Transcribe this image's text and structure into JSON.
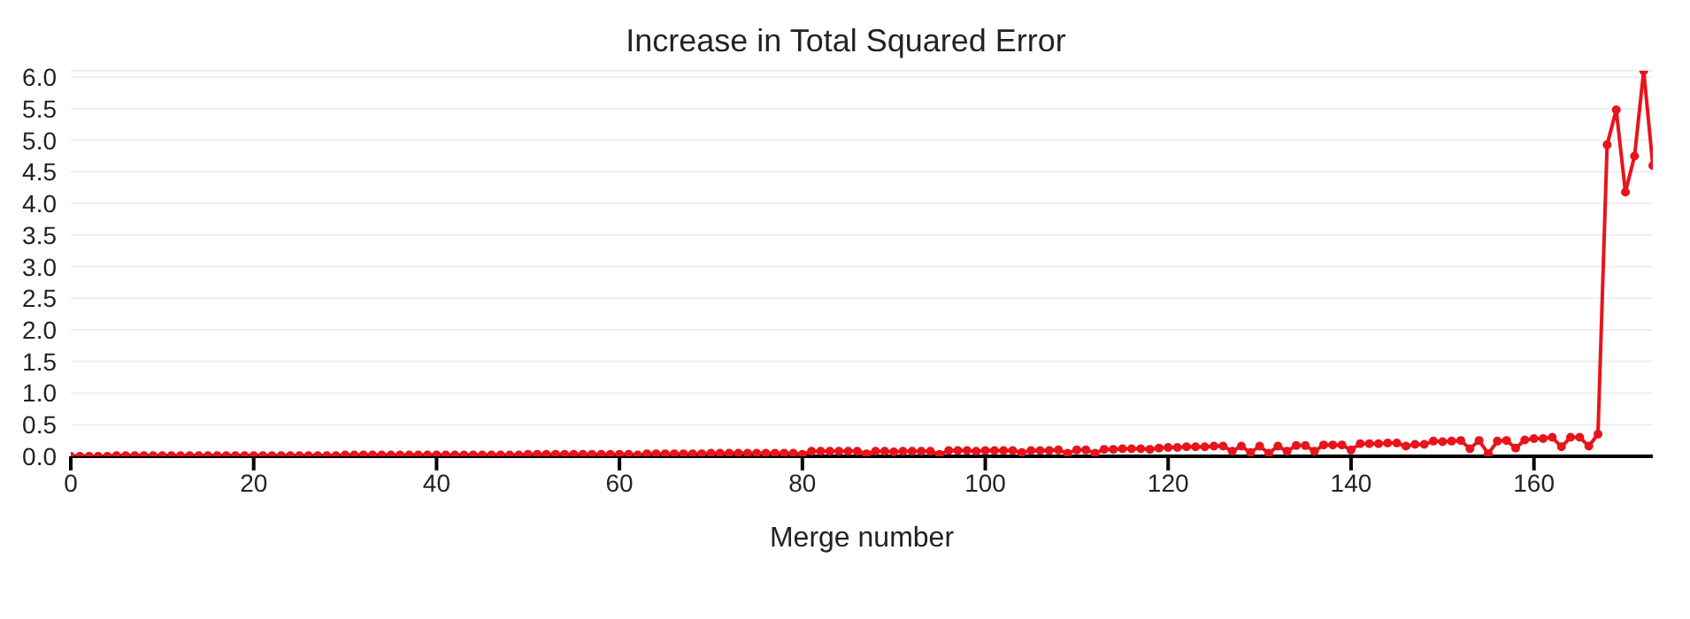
{
  "chart_data": {
    "type": "line",
    "title": "Increase in Total Squared Error",
    "xlabel": "Merge number",
    "x": [
      0,
      1,
      2,
      3,
      4,
      5,
      6,
      7,
      8,
      9,
      10,
      11,
      12,
      13,
      14,
      15,
      16,
      17,
      18,
      19,
      20,
      21,
      22,
      23,
      24,
      25,
      26,
      27,
      28,
      29,
      30,
      31,
      32,
      33,
      34,
      35,
      36,
      37,
      38,
      39,
      40,
      41,
      42,
      43,
      44,
      45,
      46,
      47,
      48,
      49,
      50,
      51,
      52,
      53,
      54,
      55,
      56,
      57,
      58,
      59,
      60,
      61,
      62,
      63,
      64,
      65,
      66,
      67,
      68,
      69,
      70,
      71,
      72,
      73,
      74,
      75,
      76,
      77,
      78,
      79,
      80,
      81,
      82,
      83,
      84,
      85,
      86,
      87,
      88,
      89,
      90,
      91,
      92,
      93,
      94,
      95,
      96,
      97,
      98,
      99,
      100,
      101,
      102,
      103,
      104,
      105,
      106,
      107,
      108,
      109,
      110,
      111,
      112,
      113,
      114,
      115,
      116,
      117,
      118,
      119,
      120,
      121,
      122,
      123,
      124,
      125,
      126,
      127,
      128,
      129,
      130,
      131,
      132,
      133,
      134,
      135,
      136,
      137,
      138,
      139,
      140,
      141,
      142,
      143,
      144,
      145,
      146,
      147,
      148,
      149,
      150,
      151,
      152,
      153,
      154,
      155,
      156,
      157,
      158,
      159,
      160,
      161,
      162,
      163,
      164,
      165,
      166,
      167,
      168,
      169,
      170,
      171,
      172,
      173
    ],
    "series": [
      {
        "color": "#e8141b",
        "values": [
          0,
          0,
          0,
          0,
          0,
          0.01,
          0.01,
          0.01,
          0.01,
          0.01,
          0.01,
          0.01,
          0.01,
          0.01,
          0.01,
          0.01,
          0.01,
          0.01,
          0.01,
          0.01,
          0.01,
          0.01,
          0.01,
          0.01,
          0.01,
          0.01,
          0.01,
          0.01,
          0.01,
          0.01,
          0.02,
          0.02,
          0.02,
          0.02,
          0.02,
          0.02,
          0.02,
          0.02,
          0.02,
          0.02,
          0.02,
          0.02,
          0.02,
          0.02,
          0.02,
          0.02,
          0.02,
          0.02,
          0.02,
          0.02,
          0.03,
          0.03,
          0.03,
          0.03,
          0.03,
          0.03,
          0.03,
          0.03,
          0.03,
          0.03,
          0.03,
          0.03,
          0.02,
          0.04,
          0.04,
          0.04,
          0.04,
          0.04,
          0.04,
          0.04,
          0.05,
          0.05,
          0.05,
          0.05,
          0.05,
          0.05,
          0.05,
          0.05,
          0.05,
          0.05,
          0.03,
          0.08,
          0.08,
          0.08,
          0.08,
          0.08,
          0.08,
          0.04,
          0.08,
          0.08,
          0.07,
          0.08,
          0.08,
          0.08,
          0.08,
          0.03,
          0.09,
          0.09,
          0.09,
          0.08,
          0.09,
          0.09,
          0.09,
          0.09,
          0.06,
          0.09,
          0.09,
          0.09,
          0.1,
          0.05,
          0.1,
          0.1,
          0.05,
          0.11,
          0.11,
          0.12,
          0.12,
          0.12,
          0.11,
          0.13,
          0.14,
          0.14,
          0.15,
          0.15,
          0.15,
          0.16,
          0.16,
          0.08,
          0.16,
          0.06,
          0.16,
          0.05,
          0.16,
          0.08,
          0.17,
          0.17,
          0.08,
          0.18,
          0.18,
          0.18,
          0.1,
          0.2,
          0.2,
          0.2,
          0.21,
          0.21,
          0.16,
          0.19,
          0.19,
          0.24,
          0.23,
          0.24,
          0.25,
          0.12,
          0.25,
          0.04,
          0.24,
          0.25,
          0.13,
          0.26,
          0.28,
          0.28,
          0.3,
          0.15,
          0.3,
          0.3,
          0.16,
          0.35,
          4.93,
          5.48,
          4.18,
          4.75,
          6.1,
          4.6
        ]
      }
    ],
    "xlim": [
      0,
      173
    ],
    "xticks": [
      0,
      20,
      40,
      60,
      80,
      100,
      120,
      140,
      160
    ],
    "ylim": [
      0,
      6.1
    ],
    "yticks": [
      {
        "value": 0,
        "label": "0.0"
      },
      0.5,
      {
        "value": 1,
        "label": "1.0"
      },
      1.5,
      {
        "value": 2,
        "label": "2.0"
      },
      2.5,
      {
        "value": 3,
        "label": "3.0"
      },
      3.5,
      {
        "value": 4,
        "label": "4.0"
      },
      4.5,
      {
        "value": 5,
        "label": "5.0"
      },
      5.5,
      {
        "value": 6,
        "label": "6.0"
      }
    ],
    "grid": "y",
    "marker": "circle",
    "line_style": "solid",
    "legend": false
  }
}
